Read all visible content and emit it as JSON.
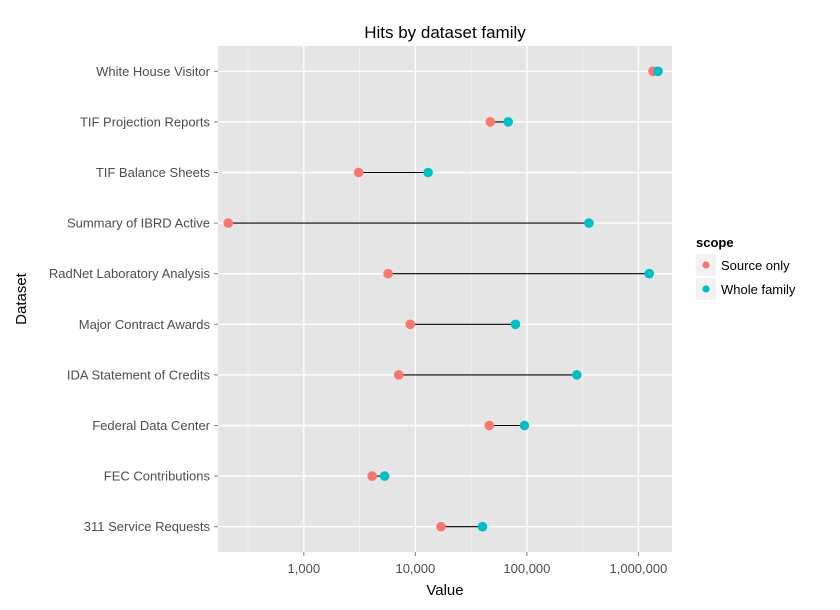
{
  "chart_data": {
    "type": "dumbbell",
    "title": "Hits by dataset family",
    "xlabel": "Value",
    "ylabel": "Dataset",
    "x_scale": "log10",
    "xlim": [
      170,
      2000000
    ],
    "x_ticks": [
      {
        "value": 1000,
        "label": "1,000"
      },
      {
        "value": 10000,
        "label": "10,000"
      },
      {
        "value": 100000,
        "label": "100,000"
      },
      {
        "value": 1000000,
        "label": "1,000,000"
      }
    ],
    "categories": [
      "White House Visitor",
      "TIF Projection Reports",
      "TIF Balance Sheets",
      "Summary of IBRD Active",
      "RadNet Laboratory Analysis",
      "Major Contract Awards",
      "IDA Statement of Credits",
      "Federal Data Center",
      "FEC Contributions",
      "311 Service Requests"
    ],
    "series": [
      {
        "name": "Source only",
        "color": "#f8766d",
        "values": [
          1350000,
          47000,
          3100,
          210,
          5700,
          9000,
          7100,
          46000,
          4100,
          17000
        ]
      },
      {
        "name": "Whole family",
        "color": "#00bfc4",
        "values": [
          1500000,
          68000,
          13000,
          360000,
          1250000,
          79000,
          280000,
          95000,
          5300,
          40000
        ]
      }
    ],
    "legend": {
      "title": "scope",
      "position": "right"
    }
  }
}
